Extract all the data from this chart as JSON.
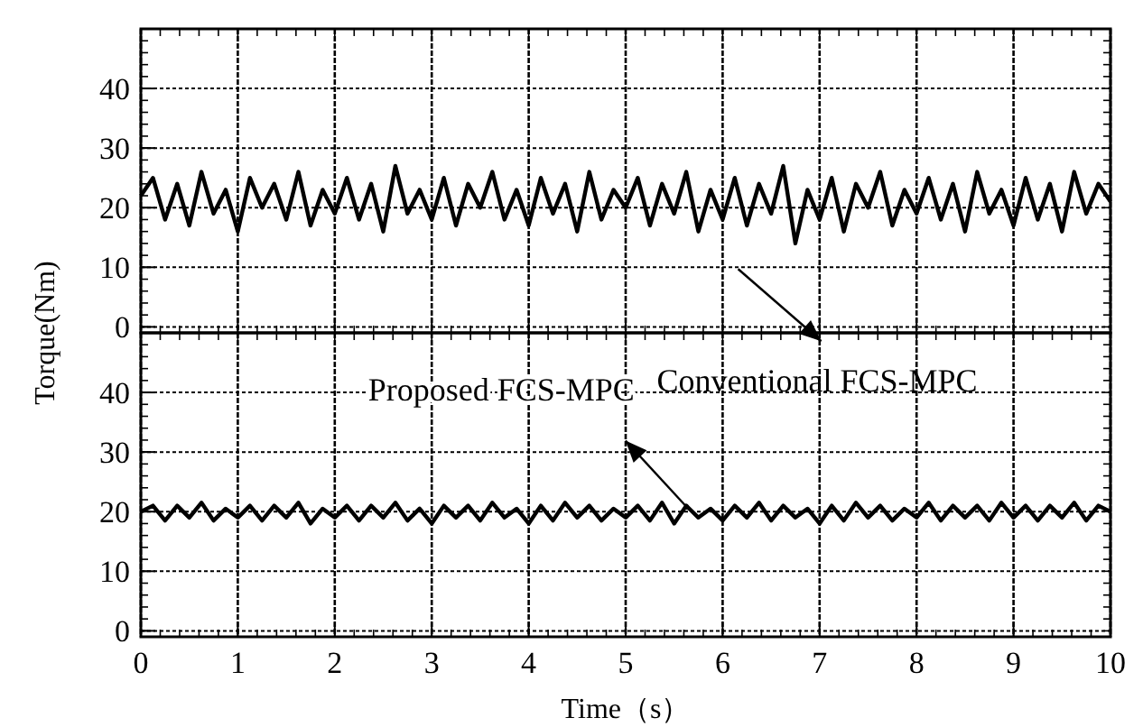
{
  "chart_data": [
    {
      "type": "line",
      "ylabel": "Torque(Nm)",
      "xlim": [
        0,
        10
      ],
      "xticks": [
        0,
        1,
        2,
        3,
        4,
        5,
        6,
        7,
        8,
        9,
        10
      ],
      "ylim": [
        -1,
        50
      ],
      "yticks": [
        0,
        10,
        20,
        30,
        40
      ],
      "grid": true,
      "tick_labels": "y",
      "x": [
        0,
        0.125,
        0.25,
        0.375,
        0.5,
        0.625,
        0.75,
        0.875,
        1,
        1.125,
        1.25,
        1.375,
        1.5,
        1.625,
        1.75,
        1.875,
        2,
        2.125,
        2.25,
        2.375,
        2.5,
        2.625,
        2.75,
        2.875,
        3,
        3.125,
        3.25,
        3.375,
        3.5,
        3.625,
        3.75,
        3.875,
        4,
        4.125,
        4.25,
        4.375,
        4.5,
        4.625,
        4.75,
        4.875,
        5,
        5.125,
        5.25,
        5.375,
        5.5,
        5.625,
        5.75,
        5.875,
        6,
        6.125,
        6.25,
        6.375,
        6.5,
        6.625,
        6.75,
        6.875,
        7,
        7.125,
        7.25,
        7.375,
        7.5,
        7.625,
        7.75,
        7.875,
        8,
        8.125,
        8.25,
        8.375,
        8.5,
        8.625,
        8.75,
        8.875,
        9,
        9.125,
        9.25,
        9.375,
        9.5,
        9.625,
        9.75,
        9.875,
        10
      ],
      "series": [
        {
          "color": "#000000",
          "values": [
            22,
            25,
            18,
            24,
            17,
            26,
            19,
            23,
            16,
            25,
            20,
            24,
            18,
            26,
            17,
            23,
            19,
            25,
            18,
            24,
            16,
            27,
            19,
            23,
            18,
            25,
            17,
            24,
            20,
            26,
            18,
            23,
            17,
            25,
            19,
            24,
            16,
            26,
            18,
            23,
            20,
            25,
            17,
            24,
            19,
            26,
            16,
            23,
            18,
            25,
            17,
            24,
            19,
            27,
            14,
            23,
            18,
            25,
            16,
            24,
            20,
            26,
            17,
            23,
            19,
            25,
            18,
            24,
            16,
            26,
            19,
            23,
            17,
            25,
            18,
            24,
            16,
            26,
            19,
            24,
            21
          ]
        }
      ],
      "annotations": [
        "Conventional FCS-MPC"
      ]
    },
    {
      "type": "line",
      "xlabel": "Time（s）",
      "xlim": [
        0,
        10
      ],
      "xticks": [
        0,
        1,
        2,
        3,
        4,
        5,
        6,
        7,
        8,
        9,
        10
      ],
      "ylim": [
        -1,
        50
      ],
      "yticks": [
        0,
        10,
        20,
        30,
        40
      ],
      "grid": true,
      "x": [
        0,
        0.125,
        0.25,
        0.375,
        0.5,
        0.625,
        0.75,
        0.875,
        1,
        1.125,
        1.25,
        1.375,
        1.5,
        1.625,
        1.75,
        1.875,
        2,
        2.125,
        2.25,
        2.375,
        2.5,
        2.625,
        2.75,
        2.875,
        3,
        3.125,
        3.25,
        3.375,
        3.5,
        3.625,
        3.75,
        3.875,
        4,
        4.125,
        4.25,
        4.375,
        4.5,
        4.625,
        4.75,
        4.875,
        5,
        5.125,
        5.25,
        5.375,
        5.5,
        5.625,
        5.75,
        5.875,
        6,
        6.125,
        6.25,
        6.375,
        6.5,
        6.625,
        6.75,
        6.875,
        7,
        7.125,
        7.25,
        7.375,
        7.5,
        7.625,
        7.75,
        7.875,
        8,
        8.125,
        8.25,
        8.375,
        8.5,
        8.625,
        8.75,
        8.875,
        9,
        9.125,
        9.25,
        9.375,
        9.5,
        9.625,
        9.75,
        9.875,
        10
      ],
      "series": [
        {
          "color": "#000000",
          "values": [
            20,
            21,
            18.5,
            21,
            19,
            21.5,
            18.5,
            20.5,
            19,
            21,
            18.5,
            21,
            19,
            21.5,
            18,
            20.5,
            19,
            21,
            18.5,
            21,
            19,
            21.5,
            18.5,
            20.5,
            18,
            21,
            19,
            21,
            18.5,
            21.5,
            19,
            20.5,
            18,
            21,
            18.5,
            21.5,
            19,
            21,
            18.5,
            20.5,
            19,
            21,
            18.5,
            21.5,
            18,
            21,
            19,
            20.5,
            18.5,
            21,
            19,
            21.5,
            18.5,
            21,
            19,
            20.5,
            18,
            21,
            18.5,
            21.5,
            19,
            21,
            18.5,
            20.5,
            19,
            21.5,
            18.5,
            21,
            19,
            21,
            18.5,
            21.5,
            19,
            21,
            18.5,
            21,
            19,
            21.5,
            18.5,
            21,
            20
          ]
        }
      ],
      "annotations": [
        "Proposed FCS-MPC"
      ]
    }
  ]
}
